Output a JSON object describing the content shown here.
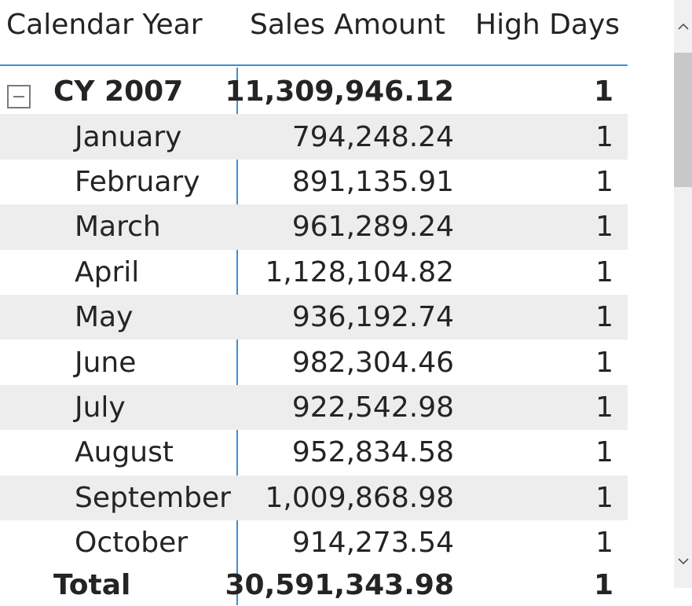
{
  "header": {
    "calendar_year": "Calendar Year",
    "sales_amount": "Sales Amount",
    "high_days": "High Days"
  },
  "year_row": {
    "label": "CY 2007",
    "sales": "11,309,946.12",
    "high": "1"
  },
  "months": [
    {
      "label": "January",
      "sales": "794,248.24",
      "high": "1"
    },
    {
      "label": "February",
      "sales": "891,135.91",
      "high": "1"
    },
    {
      "label": "March",
      "sales": "961,289.24",
      "high": "1"
    },
    {
      "label": "April",
      "sales": "1,128,104.82",
      "high": "1"
    },
    {
      "label": "May",
      "sales": "936,192.74",
      "high": "1"
    },
    {
      "label": "June",
      "sales": "982,304.46",
      "high": "1"
    },
    {
      "label": "July",
      "sales": "922,542.98",
      "high": "1"
    },
    {
      "label": "August",
      "sales": "952,834.58",
      "high": "1"
    },
    {
      "label": "September",
      "sales": "1,009,868.98",
      "high": "1"
    },
    {
      "label": "October",
      "sales": "914,273.54",
      "high": "1"
    }
  ],
  "total_row": {
    "label": "Total",
    "sales": "30,591,343.98",
    "high": "1"
  },
  "icons": {
    "expander": "collapse-minus-icon",
    "scroll_up": "chevron-up-icon",
    "scroll_down": "chevron-down-icon"
  },
  "colors": {
    "accent": "#3b8dd8",
    "shaded_row": "#ededed",
    "text": "#252423"
  }
}
